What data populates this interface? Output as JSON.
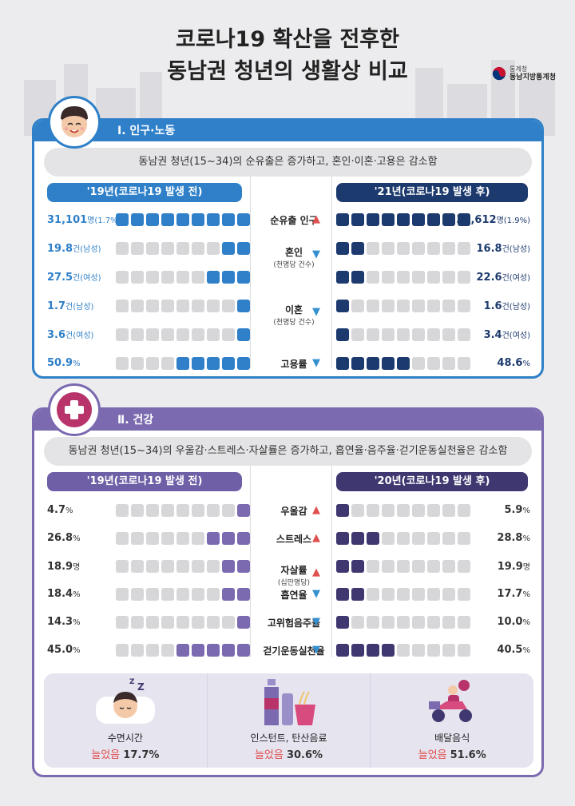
{
  "title": {
    "line1": "코로나19 확산을 전후한",
    "line2": "동남권 청년의 생활상 비교"
  },
  "logo": {
    "sub": "통계청",
    "name": "동남지방통계청"
  },
  "colors": {
    "blue": "#2f80c8",
    "navy": "#1d3a6e",
    "purple": "#7b6ab0",
    "dark_purple": "#3f3770",
    "red": "#e05050"
  },
  "section1": {
    "heading": "Ⅰ. 인구·노동",
    "summary": "동남권 청년(15~34)의 순유출은 증가하고, 혼인·이혼·고용은 감소함",
    "before_label": "'19년(코로나19 발생 전)",
    "after_label": "'21년(코로나19 발생 후)",
    "rows": [
      {
        "left": "31,101",
        "left_unit": "명(1.7%)",
        "label": "순유출 인구",
        "sub": "",
        "dir": "up",
        "right": "32,612",
        "right_unit": "명(1.9%)",
        "icon": "truck-icon",
        "left_fill": 1.0,
        "right_fill": 1.0
      },
      {
        "left": "19.8",
        "left_unit": "건(남성)",
        "label": "혼인",
        "sub": "(천명당 건수)",
        "dir": "down",
        "right": "16.8",
        "right_unit": "건(남성)",
        "icon": "couple-icon",
        "left_fill": 0.198,
        "right_fill": 0.168
      },
      {
        "left": "27.5",
        "left_unit": "건(여성)",
        "label": "",
        "sub": "",
        "dir": "",
        "right": "22.6",
        "right_unit": "건(여성)",
        "icon": "couple-icon",
        "left_fill": 0.275,
        "right_fill": 0.226
      },
      {
        "left": "1.7",
        "left_unit": "건(남성)",
        "label": "이혼",
        "sub": "(천명당 건수)",
        "dir": "down",
        "right": "1.6",
        "right_unit": "건(남성)",
        "icon": "person-icon",
        "left_fill": 0.017,
        "right_fill": 0.016
      },
      {
        "left": "3.6",
        "left_unit": "건(여성)",
        "label": "",
        "sub": "",
        "dir": "",
        "right": "3.4",
        "right_unit": "건(여성)",
        "icon": "person-icon",
        "left_fill": 0.036,
        "right_fill": 0.034
      },
      {
        "left": "50.9",
        "left_unit": "%",
        "label": "고용률",
        "sub": "",
        "dir": "down",
        "right": "48.6",
        "right_unit": "%",
        "icon": "briefcase-icon",
        "left_fill": 0.509,
        "right_fill": 0.486
      }
    ]
  },
  "section2": {
    "heading": "Ⅱ. 건강",
    "summary": "동남권 청년(15~34)의 우울감·스트레스·자살률은 증가하고, 흡연율·음주율·걷기운동실천율은 감소함",
    "before_label": "'19년(코로나19 발생 전)",
    "after_label": "'20년(코로나19 발생 후)",
    "rows": [
      {
        "left": "4.7",
        "left_unit": "%",
        "label": "우울감",
        "sub": "",
        "dir": "up",
        "right": "5.9",
        "right_unit": "%",
        "icon": "cloud-icon",
        "left_fill": 0.047,
        "right_fill": 0.059
      },
      {
        "left": "26.8",
        "left_unit": "%",
        "label": "스트레스",
        "sub": "",
        "dir": "up",
        "right": "28.8",
        "right_unit": "%",
        "icon": "lightning-icon",
        "left_fill": 0.268,
        "right_fill": 0.288
      },
      {
        "left": "18.9",
        "left_unit": "명",
        "label": "자살률",
        "sub": "(십만명당)",
        "dir": "up",
        "right": "19.9",
        "right_unit": "명",
        "icon": "heart-icon",
        "left_fill": 0.189,
        "right_fill": 0.199
      },
      {
        "left": "18.4",
        "left_unit": "%",
        "label": "흡연율",
        "sub": "",
        "dir": "down",
        "right": "17.7",
        "right_unit": "%",
        "icon": "cigarette-icon",
        "left_fill": 0.184,
        "right_fill": 0.177
      },
      {
        "left": "14.3",
        "left_unit": "%",
        "label": "고위험음주율",
        "sub": "",
        "dir": "down",
        "right": "10.0",
        "right_unit": "%",
        "icon": "beer-icon",
        "left_fill": 0.143,
        "right_fill": 0.1
      },
      {
        "left": "45.0",
        "left_unit": "%",
        "label": "걷기운동실천율",
        "sub": "",
        "dir": "down",
        "right": "40.5",
        "right_unit": "%",
        "icon": "walking-icon",
        "left_fill": 0.45,
        "right_fill": 0.405
      }
    ],
    "bottom": [
      {
        "label": "수면시간",
        "result": "늘었음",
        "value": "17.7%",
        "icon": "sleeping-icon"
      },
      {
        "label": "인스턴트, 탄산음료",
        "result": "늘었음",
        "value": "30.6%",
        "icon": "soda-noodle-icon"
      },
      {
        "label": "배달음식",
        "result": "늘었음",
        "value": "51.6%",
        "icon": "delivery-scooter-icon"
      }
    ]
  }
}
